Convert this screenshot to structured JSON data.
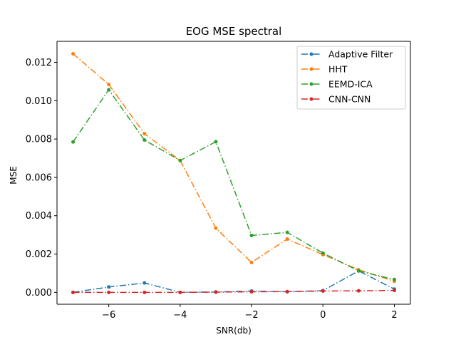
{
  "chart_data": {
    "type": "line",
    "title": "EOG MSE spectral",
    "xlabel": "SNR(db)",
    "ylabel": "MSE",
    "x": [
      -7,
      -6,
      -5,
      -4,
      -3,
      -2,
      -1,
      0,
      1,
      2
    ],
    "xlim": [
      -7.45,
      2.45
    ],
    "ylim": [
      -0.00062,
      0.0131
    ],
    "xticks": [
      -6,
      -4,
      -2,
      0,
      2
    ],
    "xtick_labels": [
      "−6",
      "−4",
      "−2",
      "0",
      "2"
    ],
    "yticks": [
      0.0,
      0.002,
      0.004,
      0.006,
      0.008,
      0.01,
      0.012
    ],
    "ytick_labels": [
      "0.000",
      "0.002",
      "0.004",
      "0.006",
      "0.008",
      "0.010",
      "0.012"
    ],
    "grid": false,
    "legend_position": "top-right",
    "series": [
      {
        "name": "Adaptive Filter",
        "color": "#1f77b4",
        "values": [
          0.0,
          0.00028,
          0.00049,
          0.0,
          2e-05,
          7e-05,
          3e-05,
          9e-05,
          0.00112,
          0.00017
        ]
      },
      {
        "name": "HHT",
        "color": "#ff7f0e",
        "values": [
          0.01245,
          0.01085,
          0.00828,
          0.00688,
          0.00335,
          0.00156,
          0.00278,
          0.00197,
          0.00118,
          0.00058
        ]
      },
      {
        "name": "EEMD-ICA",
        "color": "#2ca02c",
        "values": [
          0.00785,
          0.01057,
          0.00795,
          0.00688,
          0.00786,
          0.00297,
          0.00313,
          0.00205,
          0.00112,
          0.00067
        ]
      },
      {
        "name": "CNN-CNN",
        "color": "#d62728",
        "values": [
          0.0,
          0.0,
          0.0,
          0.0,
          1e-05,
          3e-05,
          4e-05,
          7e-05,
          8e-05,
          0.0001
        ]
      }
    ]
  }
}
